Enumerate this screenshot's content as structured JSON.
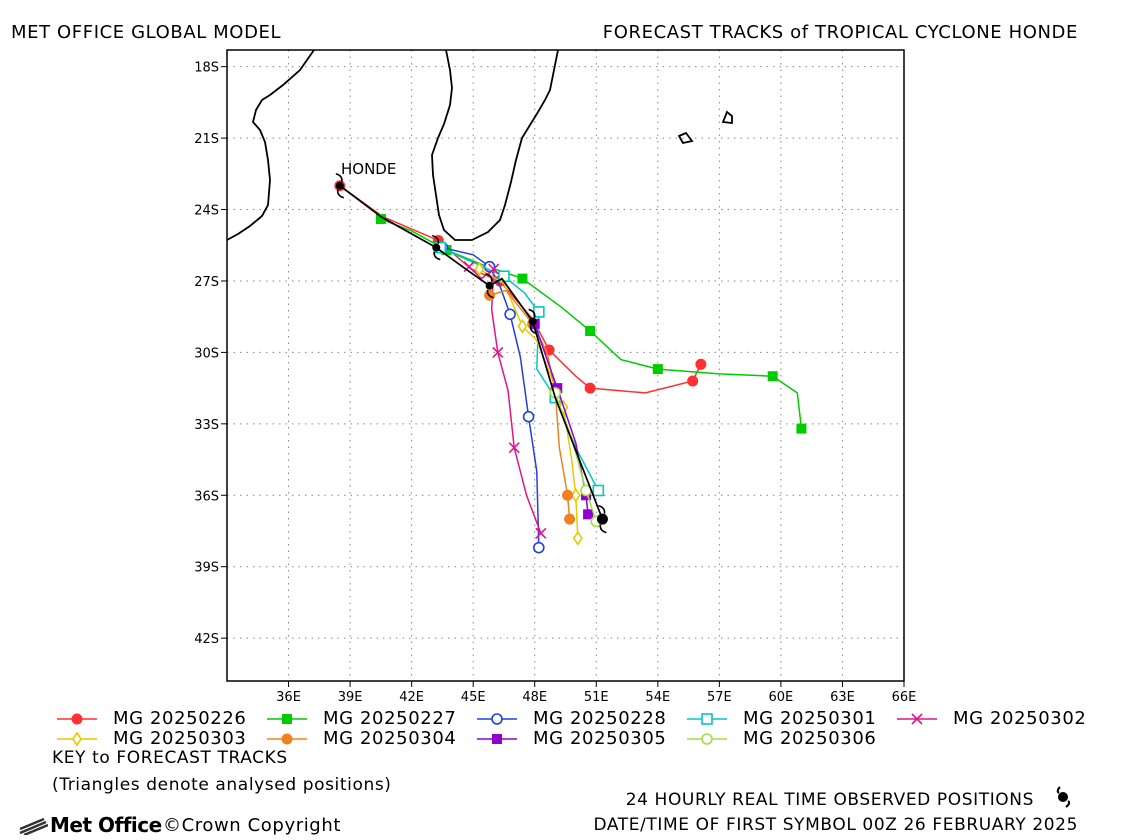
{
  "header": {
    "left_title": "MET OFFICE GLOBAL MODEL",
    "right_title": "FORECAST TRACKS of TROPICAL CYCLONE HONDE"
  },
  "map": {
    "lon_range": [
      33,
      66
    ],
    "lat_range": [
      -43.8,
      -17.3
    ],
    "lon_ticks": [
      "36E",
      "39E",
      "42E",
      "45E",
      "48E",
      "51E",
      "54E",
      "57E",
      "60E",
      "63E",
      "66E"
    ],
    "lat_ticks": [
      "18S",
      "21S",
      "24S",
      "27S",
      "30S",
      "33S",
      "36S",
      "39S",
      "42S"
    ],
    "storm_label": "HONDE",
    "grid": "dotted"
  },
  "observed_track": [
    [
      38.5,
      -23.0
    ],
    [
      40.5,
      -24.3
    ],
    [
      43.2,
      -25.6
    ],
    [
      44.8,
      -26.6
    ],
    [
      45.8,
      -27.2
    ],
    [
      46.4,
      -26.9
    ],
    [
      47.9,
      -28.7
    ],
    [
      49.0,
      -31.9
    ],
    [
      51.3,
      -37.0
    ]
  ],
  "forecast_tracks": [
    {
      "label": "MG 20250226",
      "color": "#ff3030",
      "marker": "circle-filled",
      "points": [
        [
          38.5,
          -23.0
        ],
        [
          40.6,
          -24.3
        ],
        [
          43.3,
          -25.3
        ],
        [
          44.9,
          -26.5
        ],
        [
          46.3,
          -27.0
        ],
        [
          47.9,
          -28.6
        ],
        [
          48.7,
          -29.9
        ],
        [
          50.0,
          -31.0
        ],
        [
          50.7,
          -31.5
        ],
        [
          53.4,
          -31.7
        ],
        [
          55.7,
          -31.2
        ],
        [
          56.1,
          -30.5
        ]
      ]
    },
    {
      "label": "MG 20250227",
      "color": "#00cc00",
      "marker": "square-filled",
      "points": [
        [
          40.5,
          -24.4
        ],
        [
          42.0,
          -24.9
        ],
        [
          43.7,
          -25.7
        ],
        [
          45.4,
          -26.3
        ],
        [
          47.4,
          -26.9
        ],
        [
          49.3,
          -28.1
        ],
        [
          50.7,
          -29.1
        ],
        [
          52.2,
          -30.3
        ],
        [
          54.0,
          -30.7
        ],
        [
          57.0,
          -30.9
        ],
        [
          59.6,
          -31.0
        ],
        [
          60.8,
          -31.7
        ],
        [
          61.0,
          -33.2
        ]
      ]
    },
    {
      "label": "MG 20250228",
      "color": "#2040e0",
      "marker": "circle-open",
      "points": [
        [
          43.5,
          -25.6
        ],
        [
          45.0,
          -25.9
        ],
        [
          45.8,
          -26.4
        ],
        [
          46.3,
          -27.2
        ],
        [
          46.8,
          -28.4
        ],
        [
          47.3,
          -30.2
        ],
        [
          47.7,
          -32.7
        ],
        [
          48.1,
          -35.0
        ],
        [
          48.2,
          -38.2
        ]
      ]
    },
    {
      "label": "MG 20250301",
      "color": "#00c8c8",
      "marker": "square-open",
      "points": [
        [
          43.4,
          -25.6
        ],
        [
          45.2,
          -26.3
        ],
        [
          46.5,
          -26.8
        ],
        [
          47.5,
          -27.5
        ],
        [
          48.2,
          -28.3
        ],
        [
          48.1,
          -30.7
        ],
        [
          49.0,
          -31.9
        ],
        [
          50.0,
          -34.0
        ],
        [
          51.1,
          -35.8
        ]
      ]
    },
    {
      "label": "MG 20250302",
      "color": "#e0148c",
      "marker": "x",
      "points": [
        [
          44.8,
          -26.4
        ],
        [
          45.4,
          -26.9
        ],
        [
          46.0,
          -26.5
        ],
        [
          45.9,
          -28.2
        ],
        [
          46.2,
          -30.0
        ],
        [
          46.7,
          -31.6
        ],
        [
          47.0,
          -34.0
        ],
        [
          47.6,
          -36.0
        ],
        [
          48.3,
          -37.6
        ]
      ]
    },
    {
      "label": "MG 20250303",
      "color": "#e8c800",
      "marker": "diamond-open",
      "points": [
        [
          45.3,
          -26.5
        ],
        [
          46.5,
          -27.1
        ],
        [
          47.4,
          -28.9
        ],
        [
          48.1,
          -29.5
        ],
        [
          49.4,
          -32.3
        ],
        [
          49.8,
          -34.5
        ],
        [
          50.0,
          -36.0
        ],
        [
          50.1,
          -37.8
        ]
      ]
    },
    {
      "label": "MG 20250304",
      "color": "#f08020",
      "marker": "circle-filled",
      "points": [
        [
          45.8,
          -27.6
        ],
        [
          46.6,
          -27.4
        ],
        [
          47.9,
          -28.8
        ],
        [
          48.6,
          -30.0
        ],
        [
          49.0,
          -31.6
        ],
        [
          49.2,
          -34.0
        ],
        [
          49.6,
          -36.0
        ],
        [
          49.7,
          -37.0
        ]
      ]
    },
    {
      "label": "MG 20250305",
      "color": "#9000d0",
      "marker": "square-filled",
      "points": [
        [
          48.0,
          -28.8
        ],
        [
          48.6,
          -30.3
        ],
        [
          49.1,
          -31.5
        ],
        [
          50.0,
          -33.8
        ],
        [
          50.5,
          -36.0
        ],
        [
          50.6,
          -36.8
        ]
      ]
    },
    {
      "label": "MG 20250306",
      "color": "#a0e040",
      "marker": "circle-open",
      "points": [
        [
          49.0,
          -31.7
        ],
        [
          49.8,
          -33.6
        ],
        [
          50.5,
          -35.8
        ],
        [
          51.0,
          -37.1
        ]
      ]
    }
  ],
  "legend": {
    "key_title": "KEY to FORECAST TRACKS",
    "key_note": "(Triangles denote analysed positions)"
  },
  "footer": {
    "observed_note": "24 HOURLY REAL TIME OBSERVED POSITIONS",
    "date_note": "DATE/TIME OF FIRST SYMBOL 00Z 26 FEBRUARY 2025",
    "brand": "Met Office",
    "copyright": "©Crown Copyright"
  }
}
